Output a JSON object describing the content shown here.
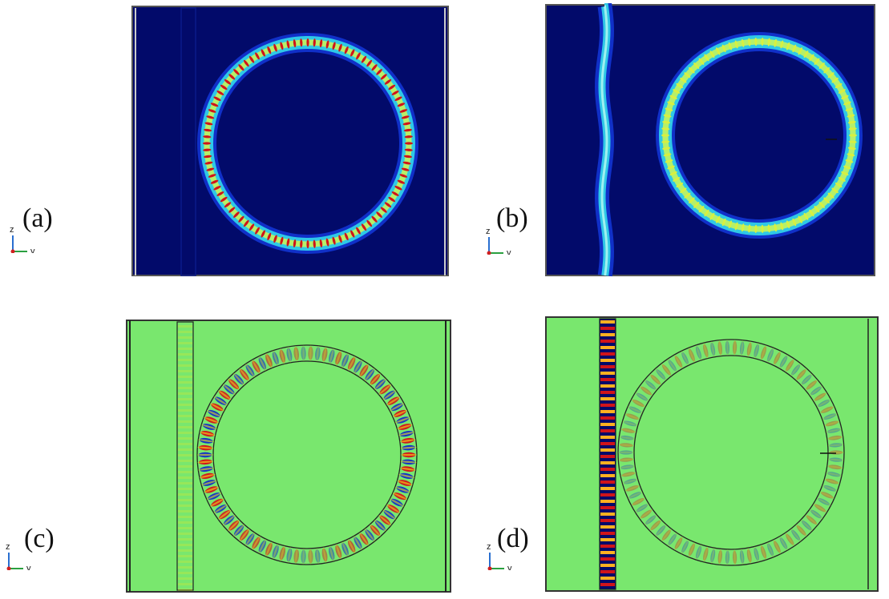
{
  "panels": [
    {
      "id": "a",
      "label": "(a)",
      "background": "#020a6a",
      "kind": "intensity",
      "active": "ring"
    },
    {
      "id": "b",
      "label": "(b)",
      "background": "#020a6a",
      "kind": "intensity",
      "active": "both"
    },
    {
      "id": "c",
      "label": "(c)",
      "background": "#79e76e",
      "kind": "field",
      "active": "ring"
    },
    {
      "id": "d",
      "label": "(d)",
      "background": "#79e76e",
      "kind": "field",
      "active": "waveguide"
    }
  ],
  "axes": {
    "vertical": "z",
    "horizontal": "y",
    "out_of_plane": "x"
  },
  "colors": {
    "red": "#d0141a",
    "yellow": "#f3e61c",
    "cyan": "#2fc8e6",
    "blue": "#1030c8",
    "dark": "#020a6a",
    "green": "#79e76e"
  }
}
